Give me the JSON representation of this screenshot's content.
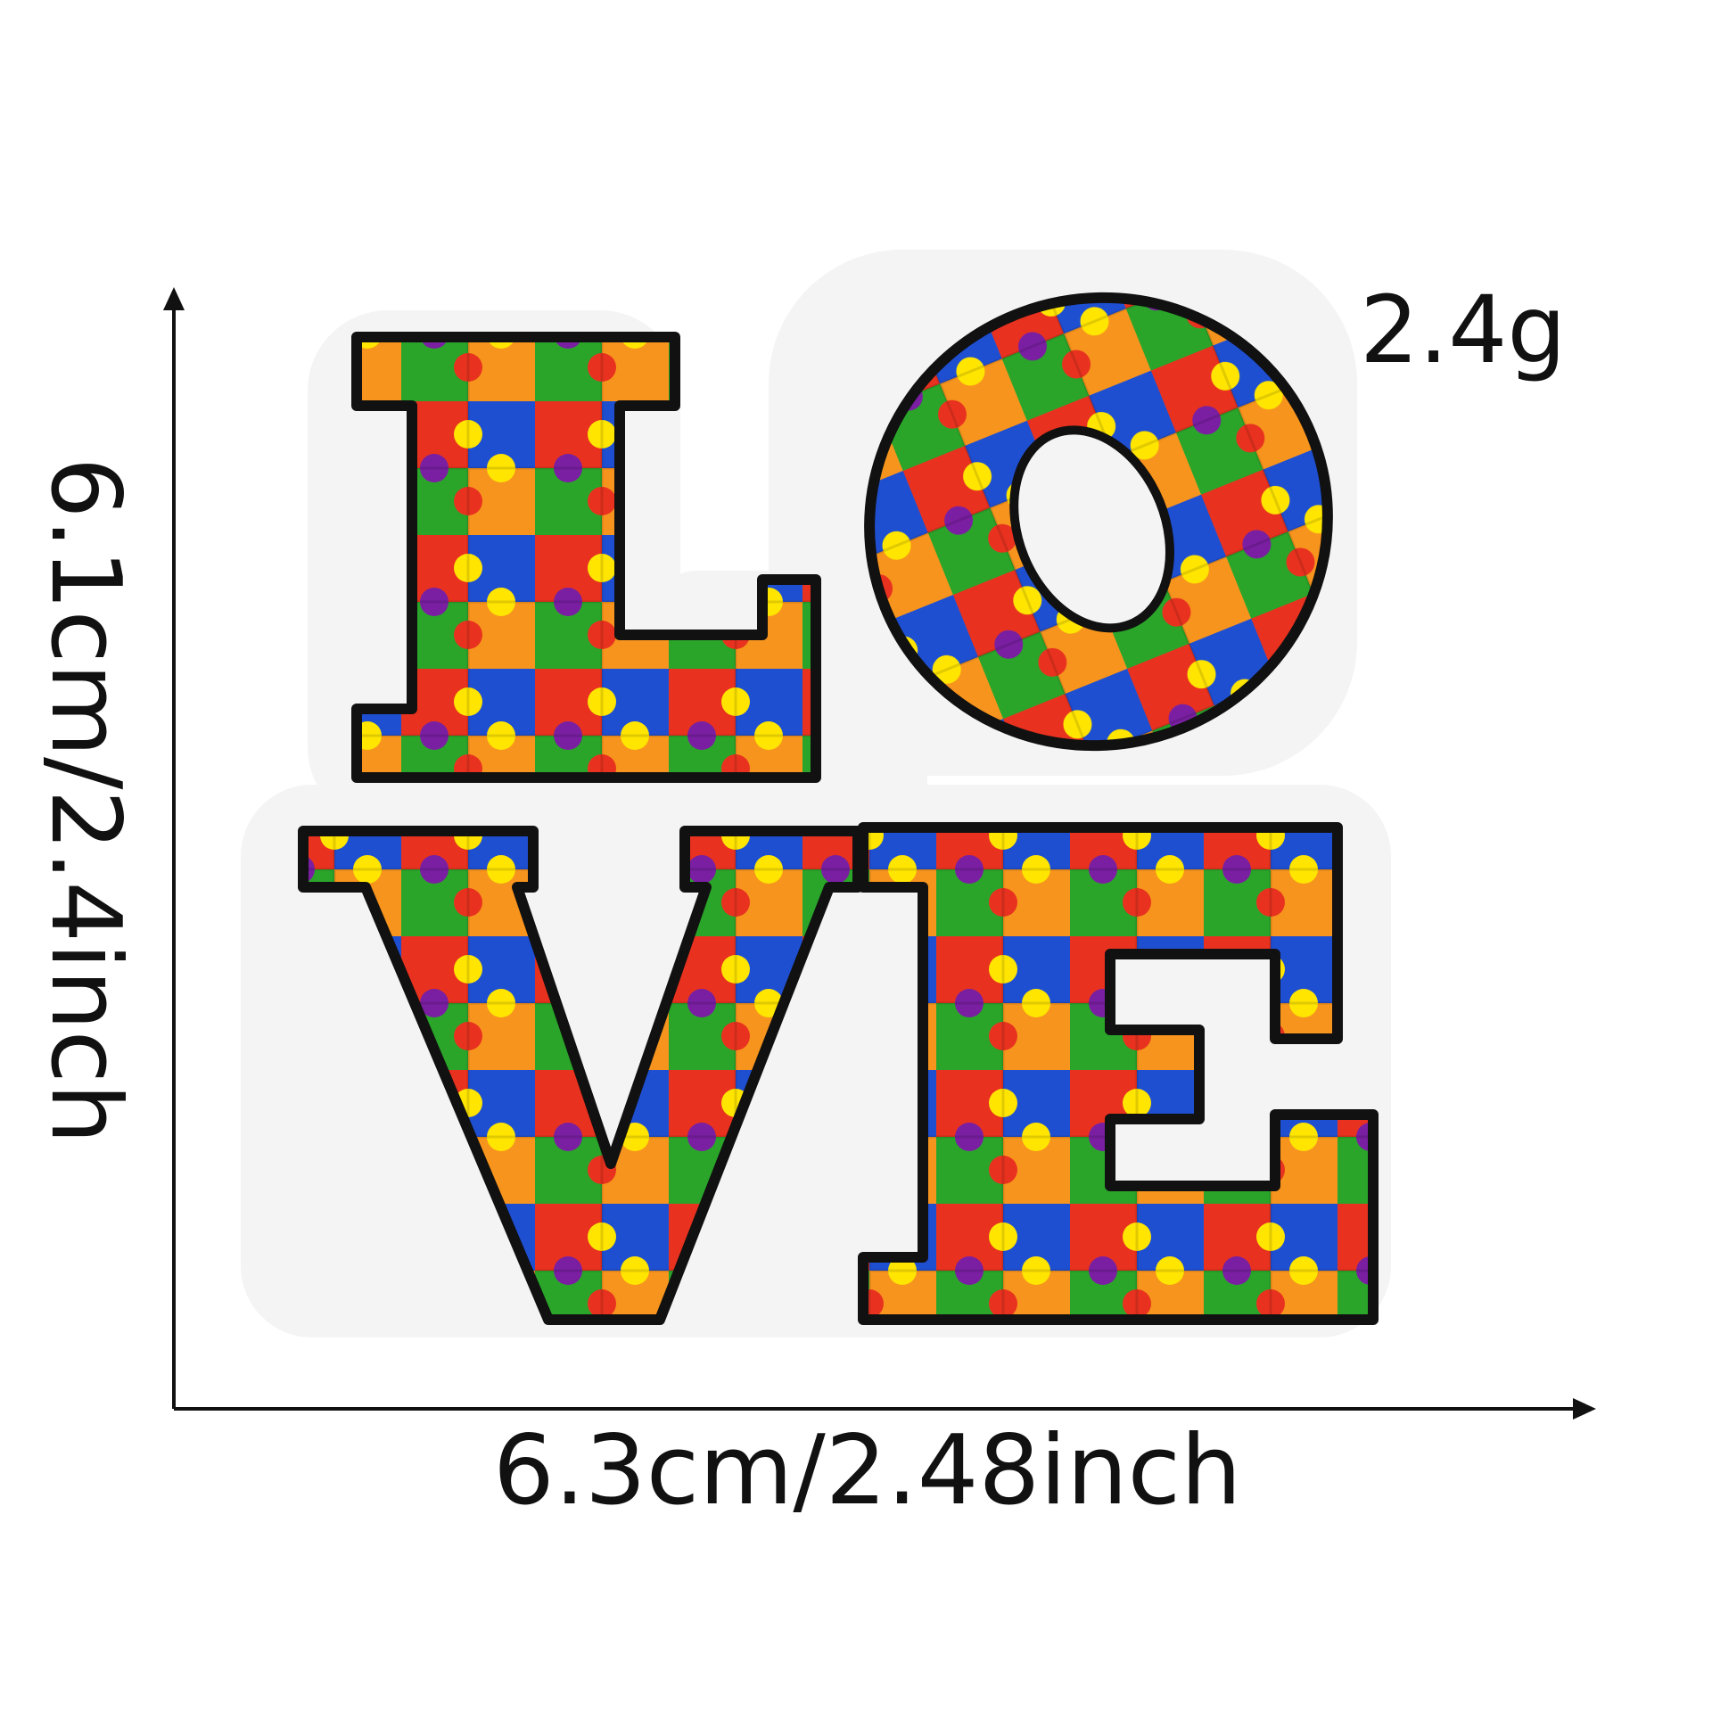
{
  "product": {
    "word": "LOVE",
    "weight": "2.4g",
    "height_label": "6.1cm/2.4inch",
    "width_label": "6.3cm/2.48inch"
  },
  "colors": {
    "background": "#ffffff",
    "felt_backing": "#f4f4f4",
    "border": "#111111",
    "puzzle": [
      "#e8321f",
      "#f7941d",
      "#ffe500",
      "#2aa52a",
      "#1f4fd1",
      "#7a1fa2"
    ]
  },
  "icons": {
    "vertical_arrow": "arrow-up-icon",
    "horizontal_arrow": "arrow-right-icon"
  }
}
